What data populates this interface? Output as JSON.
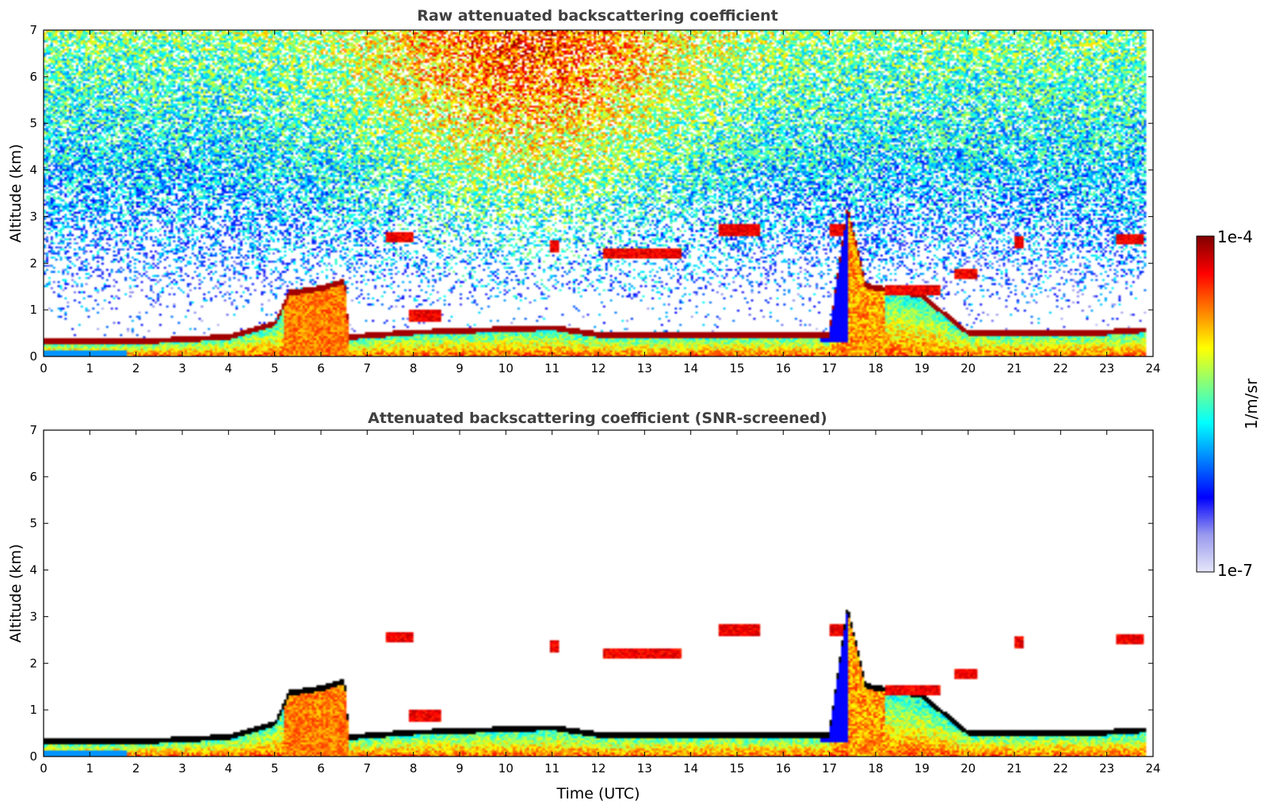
{
  "chart_data": [
    {
      "type": "heatmap",
      "title": "Raw attenuated backscattering coefficient",
      "xlabel": "",
      "ylabel": "Altitude (km)",
      "xlim": [
        0,
        24
      ],
      "ylim": [
        0,
        7
      ],
      "x_ticks": [
        "0",
        "1",
        "2",
        "3",
        "4",
        "5",
        "6",
        "7",
        "8",
        "9",
        "10",
        "11",
        "12",
        "13",
        "14",
        "15",
        "16",
        "17",
        "18",
        "19",
        "20",
        "21",
        "22",
        "23",
        "24"
      ],
      "y_ticks": [
        "0",
        "1",
        "2",
        "3",
        "4",
        "5",
        "6",
        "7"
      ],
      "screened": false,
      "background_noise": true,
      "colormap": "jet",
      "boundary_layer_top_km": [
        [
          0,
          0.3
        ],
        [
          2,
          0.3
        ],
        [
          4,
          0.4
        ],
        [
          5,
          0.7
        ],
        [
          5.3,
          1.35
        ],
        [
          6,
          1.45
        ],
        [
          6.5,
          1.6
        ],
        [
          6.6,
          0.4
        ],
        [
          8,
          0.5
        ],
        [
          11,
          0.6
        ],
        [
          12,
          0.45
        ],
        [
          17,
          0.45
        ],
        [
          17.4,
          3.2
        ],
        [
          17.8,
          1.5
        ],
        [
          19,
          1.3
        ],
        [
          20,
          0.5
        ],
        [
          21,
          0.5
        ],
        [
          23,
          0.5
        ],
        [
          23.8,
          0.55
        ]
      ],
      "cloud_layers": [
        {
          "t0": 7.4,
          "t1": 8.0,
          "alt_km": 2.55
        },
        {
          "t0": 7.9,
          "t1": 8.6,
          "alt_km": 0.85
        },
        {
          "t0": 10.95,
          "t1": 11.15,
          "alt_km": 2.35
        },
        {
          "t0": 12.1,
          "t1": 13.8,
          "alt_km": 2.2
        },
        {
          "t0": 14.6,
          "t1": 15.5,
          "alt_km": 2.7
        },
        {
          "t0": 17.0,
          "t1": 17.3,
          "alt_km": 2.7
        },
        {
          "t0": 18.2,
          "t1": 19.4,
          "alt_km": 1.4
        },
        {
          "t0": 19.7,
          "t1": 20.2,
          "alt_km": 1.75
        },
        {
          "t0": 21.0,
          "t1": 21.2,
          "alt_km": 2.45
        },
        {
          "t0": 23.2,
          "t1": 23.8,
          "alt_km": 2.5
        }
      ]
    },
    {
      "type": "heatmap",
      "title": "Attenuated backscattering coefficient (SNR-screened)",
      "xlabel": "Time (UTC)",
      "ylabel": "Altitude (km)",
      "xlim": [
        0,
        24
      ],
      "ylim": [
        0,
        7
      ],
      "x_ticks": [
        "0",
        "1",
        "2",
        "3",
        "4",
        "5",
        "6",
        "7",
        "8",
        "9",
        "10",
        "11",
        "12",
        "13",
        "14",
        "15",
        "16",
        "17",
        "18",
        "19",
        "20",
        "21",
        "22",
        "23",
        "24"
      ],
      "y_ticks": [
        "0",
        "1",
        "2",
        "3",
        "4",
        "5",
        "6",
        "7"
      ],
      "screened": true,
      "background_noise": false,
      "colormap": "jet"
    }
  ],
  "colorbar": {
    "max_label": "1e-4",
    "min_label": "1e-7",
    "unit_label": "1/m/sr",
    "scale": "log",
    "colors": [
      "#e6e6fa",
      "#9999ee",
      "#0000ff",
      "#0080ff",
      "#00ffff",
      "#80ff80",
      "#ffff00",
      "#ff8000",
      "#ff0000",
      "#800000"
    ]
  }
}
